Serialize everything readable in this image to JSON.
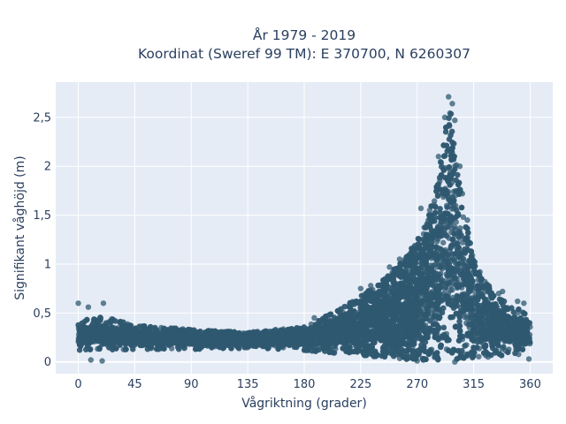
{
  "chart_data": {
    "type": "scatter",
    "title_line1": "År 1979 - 2019",
    "title_line2": "Koordinat (Sweref 99 TM): E 370700, N 6260307",
    "xlabel": "Vågriktning (grader)",
    "ylabel": "Signifikant våghöjd (m)",
    "xlim": [
      -18,
      378
    ],
    "ylim": [
      -0.12,
      2.86
    ],
    "xticks": [
      0,
      45,
      90,
      135,
      180,
      225,
      270,
      315,
      360
    ],
    "xtick_labels": [
      "0",
      "45",
      "90",
      "135",
      "180",
      "225",
      "270",
      "315",
      "360"
    ],
    "yticks": [
      0,
      0.5,
      1,
      1.5,
      2,
      2.5
    ],
    "ytick_labels": [
      "0",
      "0,5",
      "1",
      "1,5",
      "2",
      "2,5"
    ],
    "grid": true,
    "marker_color": "#2f5870",
    "envelope": {
      "direction": [
        0,
        20,
        45,
        90,
        135,
        180,
        210,
        240,
        260,
        275,
        285,
        290,
        293,
        295,
        297,
        300,
        305,
        315,
        330,
        345,
        360
      ],
      "lower": [
        0.12,
        0.12,
        0.13,
        0.13,
        0.14,
        0.12,
        0.08,
        0.05,
        0.03,
        0.02,
        0.02,
        0.02,
        0.03,
        0.02,
        0.02,
        0.02,
        0.03,
        0.04,
        0.05,
        0.07,
        0.08
      ],
      "upper": [
        0.42,
        0.46,
        0.38,
        0.33,
        0.3,
        0.36,
        0.55,
        0.8,
        1.05,
        1.35,
        1.75,
        2.2,
        2.45,
        2.62,
        2.55,
        2.2,
        1.7,
        1.05,
        0.72,
        0.58,
        0.48
      ]
    },
    "outliers": [
      {
        "x": 0,
        "y": 0.6
      },
      {
        "x": 8,
        "y": 0.56
      },
      {
        "x": 20,
        "y": 0.6
      },
      {
        "x": 295,
        "y": 2.71
      },
      {
        "x": 298,
        "y": 2.64
      },
      {
        "x": 300,
        "y": 2.47
      },
      {
        "x": 292,
        "y": 2.5
      },
      {
        "x": 273,
        "y": 1.57
      },
      {
        "x": 280,
        "y": 1.55
      },
      {
        "x": 287,
        "y": 2.1
      },
      {
        "x": 304,
        "y": 2.0
      },
      {
        "x": 306,
        "y": 1.72
      },
      {
        "x": 310,
        "y": 1.45
      },
      {
        "x": 256,
        "y": 1.05
      },
      {
        "x": 264,
        "y": 1.1
      },
      {
        "x": 248,
        "y": 0.97
      },
      {
        "x": 320,
        "y": 0.92
      },
      {
        "x": 324,
        "y": 0.82
      },
      {
        "x": 335,
        "y": 0.7
      },
      {
        "x": 338,
        "y": 0.72
      },
      {
        "x": 350,
        "y": 0.62
      },
      {
        "x": 355,
        "y": 0.6
      },
      {
        "x": 225,
        "y": 0.75
      },
      {
        "x": 233,
        "y": 0.78
      },
      {
        "x": 10,
        "y": 0.02
      },
      {
        "x": 19,
        "y": 0.01
      },
      {
        "x": 270,
        "y": 0.01
      },
      {
        "x": 300,
        "y": 0.0
      },
      {
        "x": 359,
        "y": 0.03
      },
      {
        "x": 163,
        "y": 0.32
      },
      {
        "x": 188,
        "y": 0.45
      }
    ]
  }
}
